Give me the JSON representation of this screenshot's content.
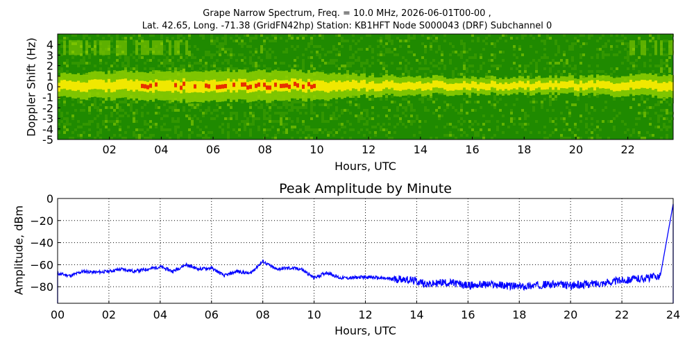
{
  "spectrogram": {
    "title_line1": "Grape Narrow Spectrum, Freq. = 10.0 MHz, 2026-06-01T00-00 ,",
    "title_line2": "Lat.  42.65, Long. -71.38 (GridFN42hp) Station: KB1HFT Node S000043 (DRF) Subchannel 0",
    "xlabel": "Hours, UTC",
    "ylabel": "Doppler Shift (Hz)",
    "xticks": [
      "02",
      "04",
      "06",
      "08",
      "10",
      "12",
      "14",
      "16",
      "18",
      "20",
      "22"
    ],
    "yticks": [
      "4",
      "3",
      "2",
      "1",
      "0",
      "-1",
      "-2",
      "-3",
      "-4",
      "-5"
    ]
  },
  "chart_data": [
    {
      "type": "heatmap",
      "title": "Grape Narrow Spectrum, Freq. = 10.0 MHz, 2026-06-01T00-00 , Lat.  42.65, Long. -71.38 (GridFN42hp) Station: KB1HFT Node S000043 (DRF) Subchannel 0",
      "xlabel": "Hours, UTC",
      "ylabel": "Doppler Shift (Hz)",
      "xlim": [
        0,
        23.75
      ],
      "ylim": [
        -5,
        5
      ],
      "colors": {
        "background": "#1f8a00",
        "mid": "#8fcf00",
        "high": "#f0e800",
        "peak": "#e83000"
      },
      "ridge_center_hz": 0.1,
      "ridge_activity": [
        {
          "hour": 0,
          "level": 0.55
        },
        {
          "hour": 2,
          "level": 0.75
        },
        {
          "hour": 4,
          "level": 0.85
        },
        {
          "hour": 5,
          "level": 0.95
        },
        {
          "hour": 7,
          "level": 0.9
        },
        {
          "hour": 8,
          "level": 0.95
        },
        {
          "hour": 10,
          "level": 0.8
        },
        {
          "hour": 12,
          "level": 0.4
        },
        {
          "hour": 14,
          "level": 0.3
        },
        {
          "hour": 16,
          "level": 0.2
        },
        {
          "hour": 18,
          "level": 0.2
        },
        {
          "hour": 20,
          "level": 0.25
        },
        {
          "hour": 22,
          "level": 0.4
        },
        {
          "hour": 23.75,
          "level": 0.55
        }
      ]
    },
    {
      "type": "line",
      "title": "Peak Amplitude by Minute",
      "xlabel": "Hours, UTC",
      "ylabel": "Amplitude, dBm",
      "xlim": [
        0,
        24
      ],
      "ylim": [
        -95,
        0
      ],
      "grid": true,
      "xticks": [
        "00",
        "02",
        "04",
        "06",
        "08",
        "10",
        "12",
        "14",
        "16",
        "18",
        "20",
        "22",
        "24"
      ],
      "yticks": [
        0,
        -20,
        -40,
        -60,
        -80
      ],
      "line_color": "#0000ff",
      "series": [
        {
          "x": [
            0,
            0.5,
            1,
            1.5,
            2,
            2.5,
            3,
            3.5,
            4,
            4.5,
            5,
            5.5,
            6,
            6.5,
            7,
            7.5,
            8,
            8.5,
            9,
            9.5,
            10,
            10.5,
            11,
            11.5,
            12,
            12.5,
            13,
            13.5,
            14,
            14.5,
            15,
            15.5,
            16,
            16.5,
            17,
            17.5,
            18,
            18.5,
            19,
            19.5,
            20,
            20.5,
            21,
            21.5,
            22,
            22.5,
            23,
            23.5,
            24
          ],
          "y": [
            -68,
            -70,
            -66,
            -67,
            -66,
            -64,
            -66,
            -64,
            -62,
            -66,
            -60,
            -64,
            -63,
            -70,
            -66,
            -68,
            -57,
            -64,
            -63,
            -64,
            -72,
            -67,
            -72,
            -72,
            -71,
            -72,
            -73,
            -73,
            -75,
            -78,
            -76,
            -77,
            -79,
            -78,
            -78,
            -79,
            -80,
            -79,
            -78,
            -78,
            -79,
            -78,
            -77,
            -76,
            -74,
            -73,
            -72,
            -70,
            -5
          ]
        }
      ]
    }
  ]
}
